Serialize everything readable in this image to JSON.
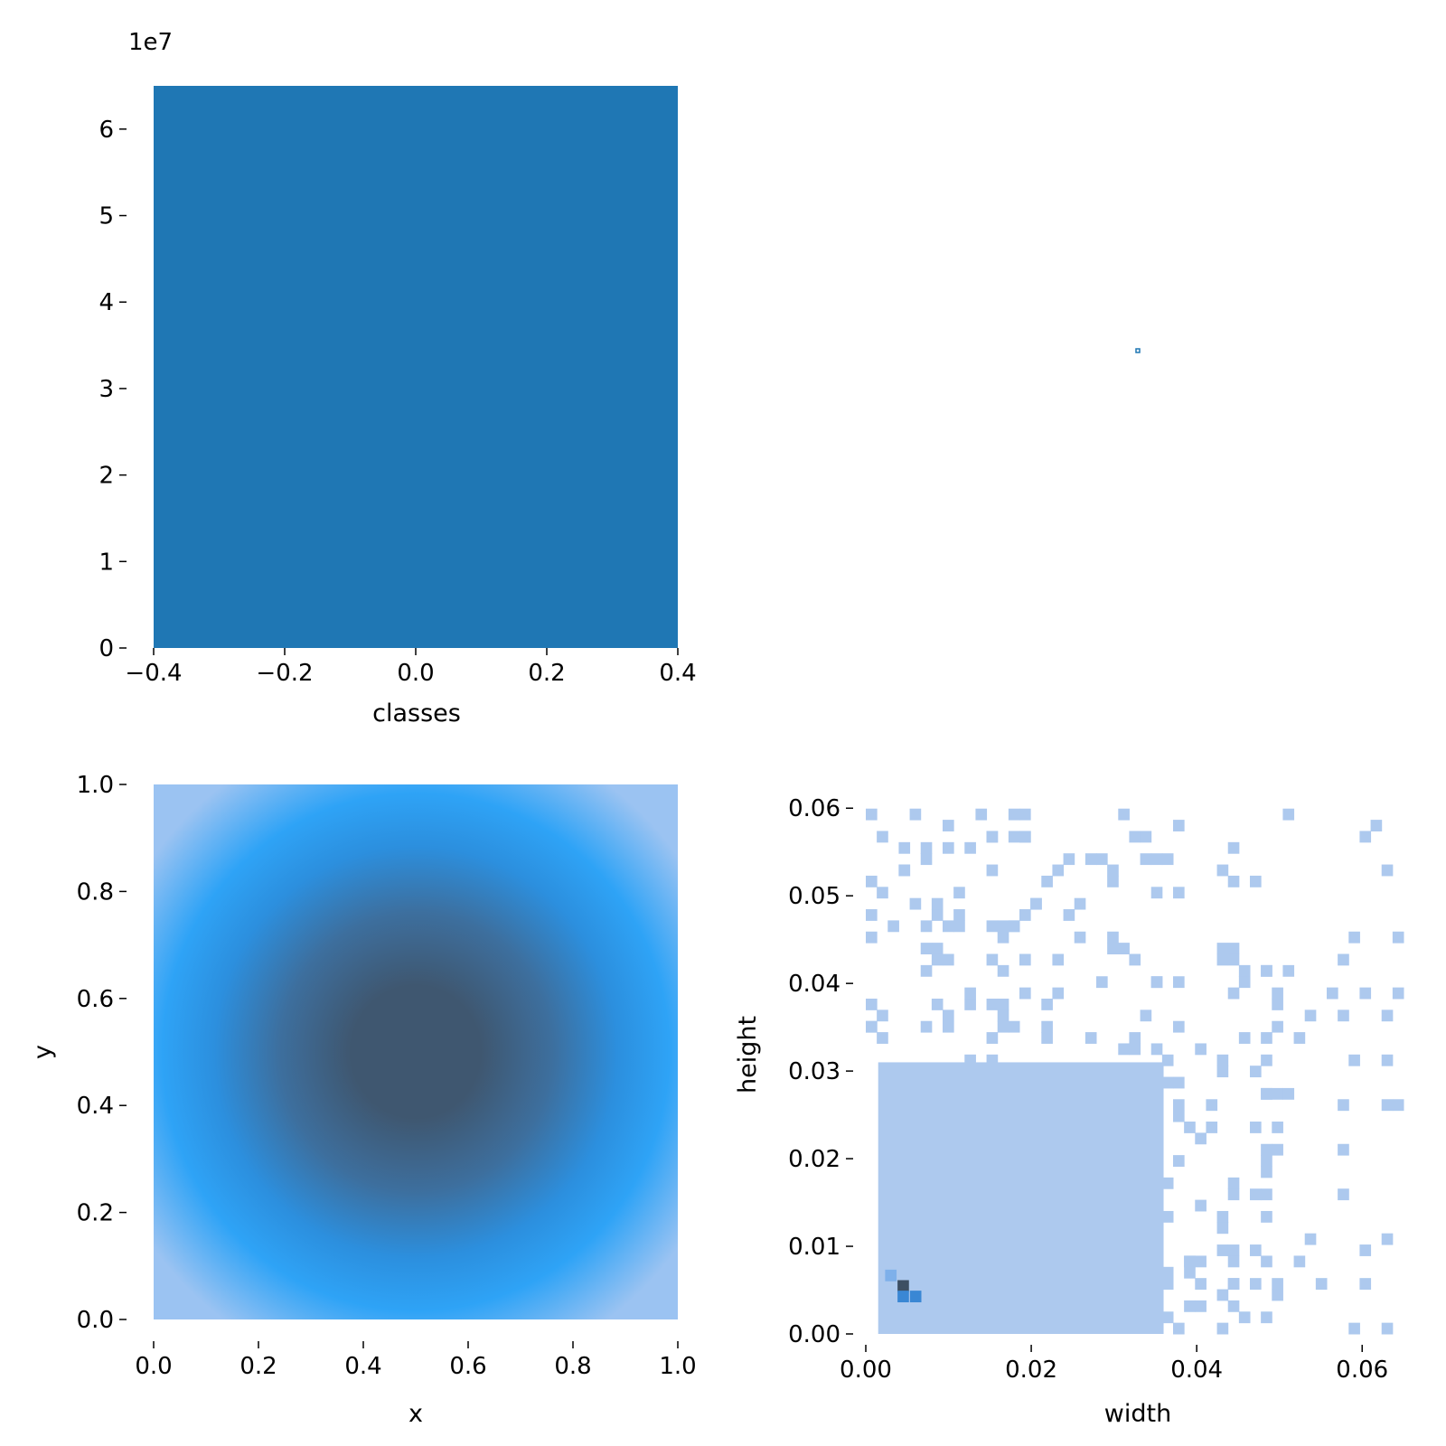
{
  "chart_data": [
    {
      "id": "classes-hist",
      "type": "bar",
      "xlabel": "classes",
      "ylabel": "",
      "offset_label": "1e7",
      "xlim": [
        -0.4,
        0.4
      ],
      "ylim": [
        0,
        6.5
      ],
      "xticks": [
        "−0.4",
        "−0.2",
        "0.0",
        "0.2",
        "0.4"
      ],
      "yticks": [
        "0",
        "1",
        "2",
        "3",
        "4",
        "5",
        "6"
      ],
      "bars": [
        {
          "x0": -0.4,
          "x1": 0.4,
          "value": 6.5
        }
      ],
      "color": "#1f77b4",
      "grid": false
    },
    {
      "id": "empty-panel",
      "type": "heatmap",
      "marker": {
        "x": 0.5,
        "y": 0.5
      },
      "color": "#1f77b4"
    },
    {
      "id": "xy-density",
      "type": "heatmap",
      "xlabel": "x",
      "ylabel": "y",
      "xlim": [
        0,
        1
      ],
      "ylim": [
        0,
        1
      ],
      "xticks": [
        "0.0",
        "0.2",
        "0.4",
        "0.6",
        "0.8",
        "1.0"
      ],
      "yticks": [
        "0.0",
        "0.2",
        "0.4",
        "0.6",
        "0.8",
        "1.0"
      ],
      "center": {
        "x": 0.5,
        "y": 0.5
      },
      "colors": {
        "low": "#9bc3f2",
        "mid": "#2ea3f6",
        "high": "#3f5770"
      },
      "grid": false
    },
    {
      "id": "wh-hist",
      "type": "heatmap",
      "xlabel": "width",
      "ylabel": "height",
      "xlim": [
        0,
        0.065
      ],
      "ylim": [
        0,
        0.0625
      ],
      "xticks": [
        "0.00",
        "0.02",
        "0.04",
        "0.06"
      ],
      "yticks": [
        "0.00",
        "0.01",
        "0.02",
        "0.03",
        "0.04",
        "0.05",
        "0.06"
      ],
      "dense_region": {
        "x": [
          0.0015,
          0.036
        ],
        "y": [
          0,
          0.031
        ]
      },
      "hot_cells": [
        {
          "x": 0.0045,
          "y": 0.0055,
          "level": "max"
        },
        {
          "x": 0.0045,
          "y": 0.0043,
          "level": "high"
        },
        {
          "x": 0.006,
          "y": 0.0043,
          "level": "high"
        },
        {
          "x": 0.003,
          "y": 0.0067,
          "level": "mid"
        }
      ],
      "colors": {
        "base": "#adc9ee",
        "mid": "#7eb0ea",
        "high": "#3a87d4",
        "max": "#3d4f63"
      },
      "grid": false
    }
  ]
}
